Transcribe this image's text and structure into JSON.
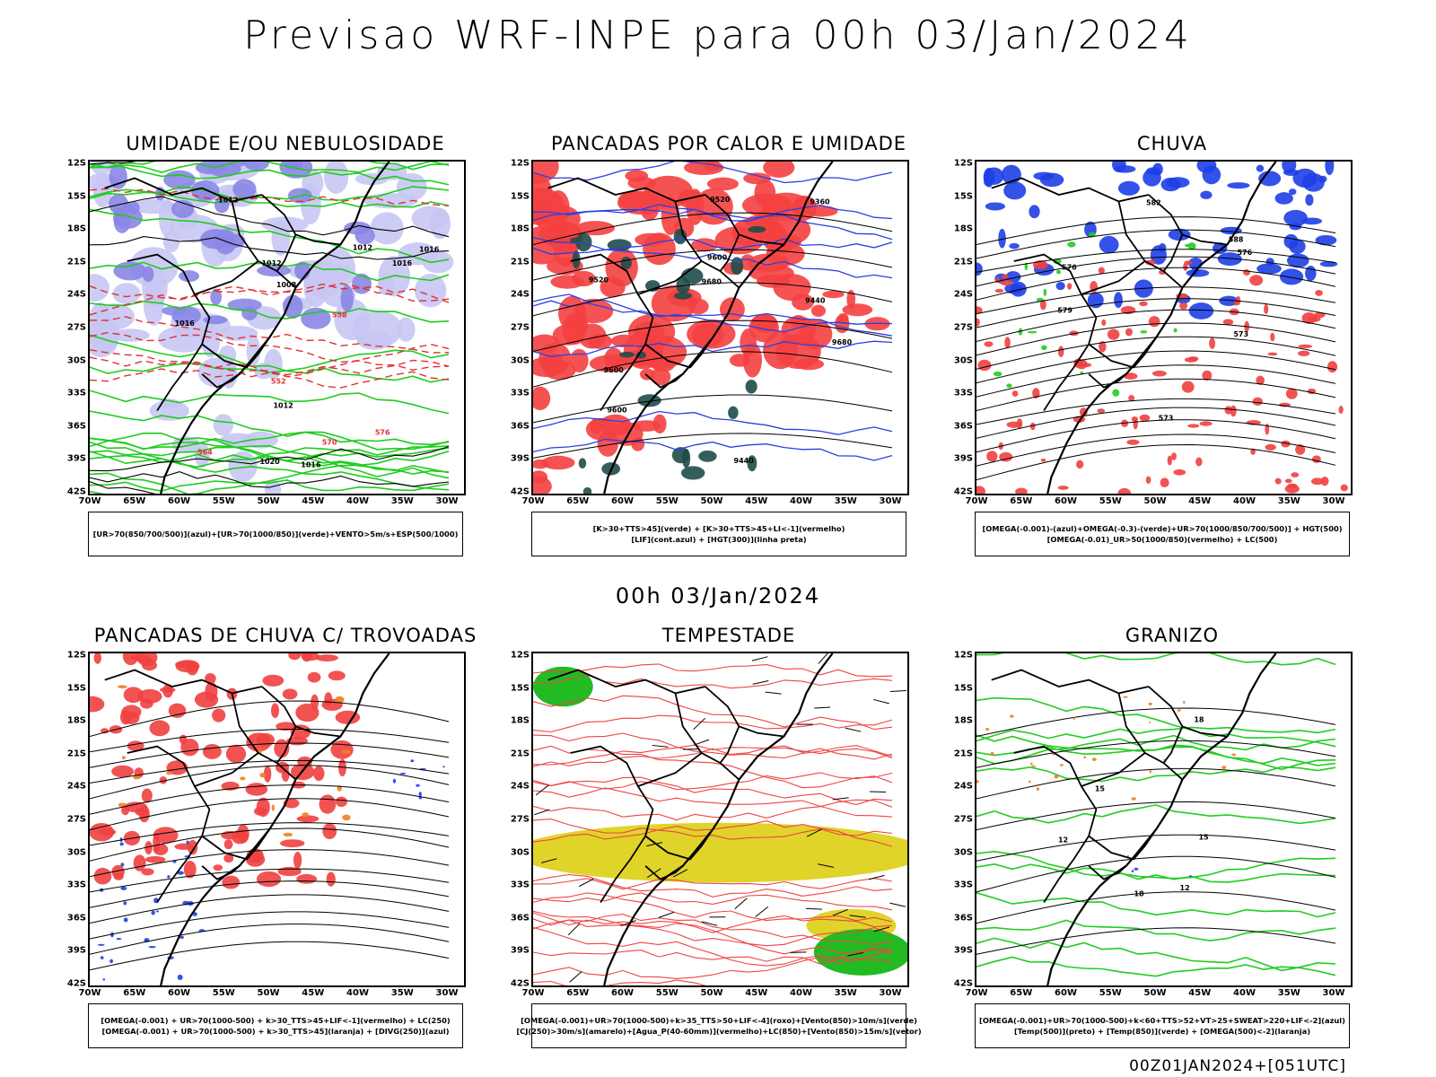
{
  "header": {
    "title": "Previsao WRF-INPE  para 00h 03/Jan/2024",
    "mid_time": "00h 03/Jan/2024",
    "footer_code": "00Z01JAN2024+[051UTC]"
  },
  "axes": {
    "lat_labels": [
      "12S",
      "15S",
      "18S",
      "21S",
      "24S",
      "27S",
      "30S",
      "33S",
      "36S",
      "39S",
      "42S"
    ],
    "lon_labels": [
      "70W",
      "65W",
      "60W",
      "55W",
      "50W",
      "45W",
      "40W",
      "35W",
      "30W"
    ]
  },
  "panels": [
    {
      "title": "UMIDADE E/OU NEBULOSIDADE",
      "legend": [
        "[UR>70(850/700/500)](azul)+[UR>70(1000/850)](verde)+VENTO>5m/s+ESP(500/1000)"
      ],
      "colors": {
        "fill_primary": "#8a86e6",
        "fill_secondary": "#c8c6f3",
        "contour_a": "#1fcc1f",
        "contour_b": "#e03030"
      },
      "contour_labels": [
        "1016",
        "1012",
        "1008",
        "1012",
        "1012",
        "1016",
        "1012",
        "1016",
        "1020",
        "1016",
        "576",
        "564",
        "552",
        "570",
        "558"
      ]
    },
    {
      "title": "PANCADAS POR CALOR E UMIDADE",
      "legend": [
        "[K>30+TTS>45](verde) + [K>30+TTS>45+LI<-1](vermelho)",
        "[LIF](cont.azul) + [HGT(300)](linha preta)"
      ],
      "colors": {
        "fill_primary": "#f44040",
        "fill_secondary": "#1e4d4a",
        "contour_a": "#2a40e0",
        "contour_b": "#000000"
      },
      "contour_labels": [
        "9680",
        "9680",
        "9600",
        "9600",
        "9600",
        "9520",
        "9520",
        "9440",
        "9440",
        "9360"
      ]
    },
    {
      "title": "CHUVA",
      "legend": [
        "[OMEGA(-0.001)-(azul)+OMEGA(-0.3)-(verde)+UR>70(1000/850/700/500)] + HGT(500)",
        "[OMEGA(-0.01)_UR>50(1000/850)(vermelho) + LC(500)"
      ],
      "colors": {
        "fill_primary": "#1e3fe6",
        "fill_secondary": "#f04040",
        "contour_a": "#22cc22",
        "contour_b": "#000000"
      },
      "contour_labels": [
        "588",
        "582",
        "576",
        "576",
        "573",
        "579",
        "573"
      ]
    },
    {
      "title": "PANCADAS DE CHUVA C/ TROVOADAS",
      "legend": [
        "[OMEGA(-0.001) + UR>70(1000-500) + k>30_TTS>45+LIF<-1](vermelho) + LC(250)",
        "[OMEGA(-0.001) + UR>70(1000-500) + k>30_TTS>45](laranja) + [DIVG(250)](azul)"
      ],
      "colors": {
        "fill_primary": "#f04040",
        "fill_secondary": "#f08020",
        "contour_a": "#1e3fe6",
        "contour_b": "#000000"
      },
      "contour_labels": []
    },
    {
      "title": "TEMPESTADE",
      "legend": [
        "[OMEGA(-0.001)+UR>70(1000-500)+k>35_TTS>50+LIF<-4](roxo)+[Vento(850)>10m/s](verde)",
        "[CJ(250)>30m/s](amarelo)+[Agua_P(40-60mm)](vermelho)+LC(850)+[Vento(850)>15m/s](vetor)"
      ],
      "colors": {
        "fill_primary": "#e0d42a",
        "fill_secondary": "#22bb22",
        "contour_a": "#ee4444",
        "contour_b": "#000000"
      },
      "contour_labels": []
    },
    {
      "title": "GRANIZO",
      "legend": [
        "[OMEGA(-0.001)+UR>70(1000-500)+k<60+TTS>52+VT>25+SWEAT>220+LIF<-2](azul)",
        "[Temp(500)](preto) + [Temp(850)](verde) + [OMEGA(500)<-2](laranja)"
      ],
      "colors": {
        "fill_primary": "#f08020",
        "fill_secondary": "#1e3fe6",
        "contour_a": "#22cc22",
        "contour_b": "#000000"
      },
      "contour_labels": [
        "12",
        "12",
        "15",
        "15",
        "18",
        "18"
      ]
    }
  ]
}
